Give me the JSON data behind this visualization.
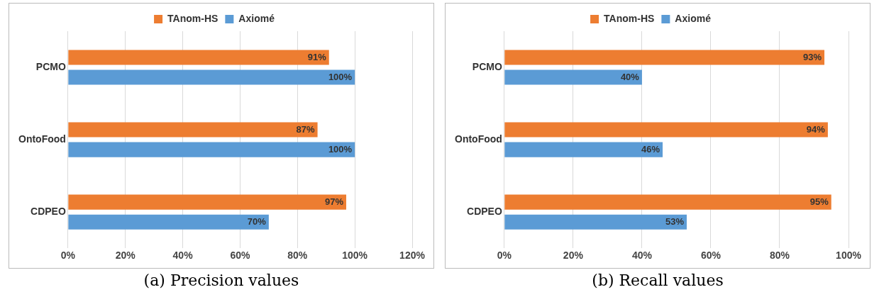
{
  "chart_data": [
    {
      "type": "bar",
      "orientation": "horizontal",
      "categories": [
        "PCMO",
        "OntoFood",
        "CDPEO"
      ],
      "series": [
        {
          "name": "TAnom-HS",
          "color": "#ed7d31",
          "values": [
            91,
            87,
            97
          ],
          "value_labels": [
            "91%",
            "87%",
            "97%"
          ]
        },
        {
          "name": "Axiomé",
          "color": "#5b9bd5",
          "values": [
            100,
            100,
            70
          ],
          "value_labels": [
            "100%",
            "100%",
            "70%"
          ]
        }
      ],
      "xlim": [
        0,
        120
      ],
      "xticks": [
        {
          "value": 0,
          "label": "0%"
        },
        {
          "value": 20,
          "label": "20%"
        },
        {
          "value": 40,
          "label": "40%"
        },
        {
          "value": 60,
          "label": "60%"
        },
        {
          "value": 80,
          "label": "80%"
        },
        {
          "value": 100,
          "label": "100%"
        },
        {
          "value": 120,
          "label": "120%"
        }
      ],
      "grid": "x",
      "legend": "top",
      "annotations": [
        "(a) Precision values"
      ]
    },
    {
      "type": "bar",
      "orientation": "horizontal",
      "categories": [
        "PCMO",
        "OntoFood",
        "CDPEO"
      ],
      "series": [
        {
          "name": "TAnom-HS",
          "color": "#ed7d31",
          "values": [
            93,
            94,
            95
          ],
          "value_labels": [
            "93%",
            "94%",
            "95%"
          ]
        },
        {
          "name": "Axiomé",
          "color": "#5b9bd5",
          "values": [
            40,
            46,
            53
          ],
          "value_labels": [
            "40%",
            "46%",
            "53%"
          ]
        }
      ],
      "xlim": [
        0,
        100
      ],
      "xticks": [
        {
          "value": 0,
          "label": "0%"
        },
        {
          "value": 20,
          "label": "20%"
        },
        {
          "value": 40,
          "label": "40%"
        },
        {
          "value": 60,
          "label": "60%"
        },
        {
          "value": 80,
          "label": "80%"
        },
        {
          "value": 100,
          "label": "100%"
        }
      ],
      "grid": "x",
      "legend": "top",
      "annotations": [
        "(b) Recall values"
      ]
    }
  ]
}
